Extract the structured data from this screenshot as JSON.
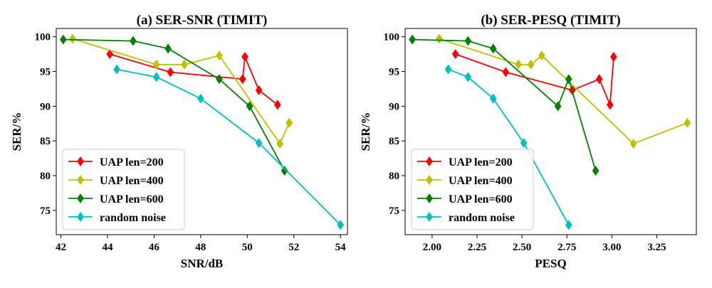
{
  "figure": {
    "colors": {
      "uap200": "#ff0000",
      "uap400": "#bfbf00",
      "uap600": "#008000",
      "noise": "#00bfbf"
    }
  },
  "chart_data": [
    {
      "type": "line",
      "title": "(a) SER-SNR (TIMIT)",
      "xlabel": "SNR/dB",
      "ylabel": "SER/%",
      "xlim": [
        41.8,
        54.3
      ],
      "ylim": [
        71.5,
        101.2
      ],
      "xticks": [
        42,
        44,
        46,
        48,
        50,
        52,
        54
      ],
      "xtick_labels": [
        "42",
        "44",
        "46",
        "48",
        "50",
        "52",
        "54"
      ],
      "yticks": [
        75,
        80,
        85,
        90,
        95,
        100
      ],
      "ytick_labels": [
        "75",
        "80",
        "85",
        "90",
        "95",
        "100"
      ],
      "grid": false,
      "legend_position": "lower-left",
      "marker": "diamond",
      "series": [
        {
          "name": "UAP len=200",
          "color": "#ff0000",
          "x": [
            44.1,
            46.7,
            49.8,
            49.9,
            50.5,
            51.3
          ],
          "y": [
            97.5,
            94.9,
            93.9,
            97.1,
            92.3,
            90.2
          ]
        },
        {
          "name": "UAP len=400",
          "color": "#bfbf00",
          "x": [
            42.5,
            46.1,
            47.3,
            48.8,
            51.4,
            51.8
          ],
          "y": [
            99.7,
            96.0,
            96.0,
            97.3,
            84.6,
            87.6
          ]
        },
        {
          "name": "UAP len=600",
          "color": "#008000",
          "x": [
            42.1,
            45.1,
            46.6,
            48.8,
            50.1,
            51.6
          ],
          "y": [
            99.6,
            99.4,
            98.3,
            93.9,
            90.0,
            80.7
          ]
        },
        {
          "name": "random noise",
          "color": "#00bfbf",
          "x": [
            44.4,
            46.1,
            48.0,
            50.5,
            54.0
          ],
          "y": [
            95.3,
            94.2,
            91.1,
            84.7,
            72.9
          ]
        }
      ]
    },
    {
      "type": "line",
      "title": "(b) SER-PESQ (TIMIT)",
      "xlabel": "PESQ",
      "ylabel": "SER/%",
      "xlim": [
        1.85,
        3.47
      ],
      "ylim": [
        71.5,
        101.2
      ],
      "xticks": [
        2.0,
        2.25,
        2.5,
        2.75,
        3.0,
        3.25
      ],
      "xtick_labels": [
        "2.00",
        "2.25",
        "2.50",
        "2.75",
        "3.00",
        "3.25"
      ],
      "yticks": [
        75,
        80,
        85,
        90,
        95,
        100
      ],
      "ytick_labels": [
        "75",
        "80",
        "85",
        "90",
        "95",
        "100"
      ],
      "grid": false,
      "legend_position": "lower-left",
      "marker": "diamond",
      "series": [
        {
          "name": "UAP len=200",
          "color": "#ff0000",
          "x": [
            2.13,
            2.41,
            2.78,
            2.93,
            2.99,
            3.01
          ],
          "y": [
            97.5,
            94.9,
            92.3,
            93.9,
            90.2,
            97.1
          ]
        },
        {
          "name": "UAP len=400",
          "color": "#bfbf00",
          "x": [
            2.04,
            2.48,
            2.55,
            2.61,
            3.12,
            3.42
          ],
          "y": [
            99.7,
            96.0,
            96.0,
            97.3,
            84.6,
            87.6
          ]
        },
        {
          "name": "UAP len=600",
          "color": "#008000",
          "x": [
            1.89,
            2.2,
            2.34,
            2.7,
            2.76,
            2.91
          ],
          "y": [
            99.6,
            99.4,
            98.3,
            90.0,
            93.9,
            80.7
          ]
        },
        {
          "name": "random noise",
          "color": "#00bfbf",
          "x": [
            2.09,
            2.2,
            2.34,
            2.51,
            2.76
          ],
          "y": [
            95.3,
            94.2,
            91.1,
            84.7,
            72.9
          ]
        }
      ]
    }
  ]
}
